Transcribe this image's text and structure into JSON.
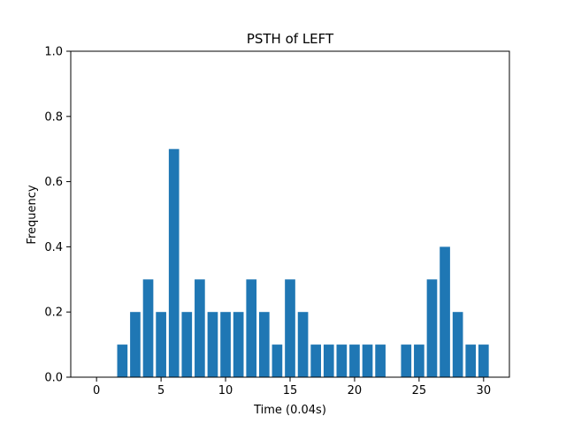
{
  "chart_data": {
    "type": "bar",
    "title": "PSTH of LEFT",
    "xlabel": "Time (0.04s)",
    "ylabel": "Frequency",
    "xlim": [
      -2,
      32
    ],
    "ylim": [
      0,
      1.0
    ],
    "x_ticks": [
      0,
      5,
      10,
      15,
      20,
      25,
      30
    ],
    "x_tick_labels": [
      "0",
      "5",
      "10",
      "15",
      "20",
      "25",
      "30"
    ],
    "y_ticks": [
      0,
      0.2,
      0.4,
      0.6,
      0.8,
      1.0
    ],
    "y_tick_labels": [
      "0.0",
      "0.2",
      "0.4",
      "0.6",
      "0.8",
      "1.0"
    ],
    "grid": false,
    "bar_color": "#1f77b4",
    "x": [
      2,
      3,
      4,
      5,
      6,
      7,
      8,
      9,
      10,
      11,
      12,
      13,
      14,
      15,
      16,
      17,
      18,
      19,
      20,
      21,
      22,
      24,
      25,
      26,
      27,
      28,
      29,
      30
    ],
    "values": [
      0.1,
      0.2,
      0.3,
      0.2,
      0.7,
      0.2,
      0.3,
      0.2,
      0.2,
      0.2,
      0.3,
      0.2,
      0.1,
      0.3,
      0.2,
      0.1,
      0.1,
      0.1,
      0.1,
      0.1,
      0.1,
      0.1,
      0.1,
      0.3,
      0.4,
      0.2,
      0.1,
      0.1
    ]
  }
}
